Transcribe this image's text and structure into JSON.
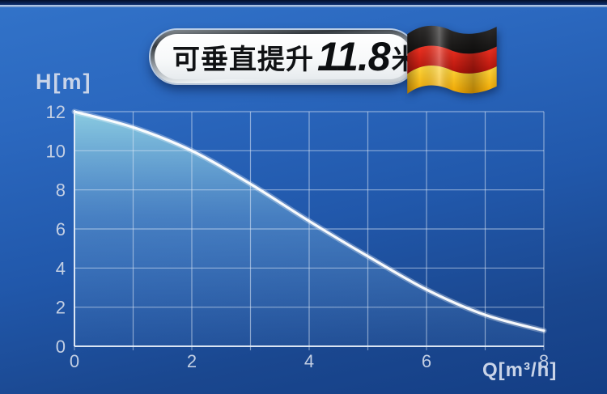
{
  "badge": {
    "prefix": "可垂直提升",
    "value": "11.8",
    "unit": "米",
    "flag": {
      "name": "germany-flag",
      "colors": {
        "black_top": "#2e2c2b",
        "black_bottom": "#121110",
        "red_top": "#f23322",
        "red_bottom": "#ad110a",
        "gold_top": "#ffd93f",
        "gold_bottom": "#efa400"
      }
    }
  },
  "chart_data": {
    "type": "area",
    "title": "",
    "x": [
      0,
      1,
      2,
      3,
      4,
      5,
      6,
      7,
      8
    ],
    "values": [
      12,
      11.2,
      10,
      8.3,
      6.4,
      4.6,
      2.9,
      1.6,
      0.8
    ],
    "xlabel": "Q[m³/h]",
    "ylabel": "H[m]",
    "xlim": [
      0,
      8
    ],
    "ylim": [
      0,
      12
    ],
    "x_tick_labels": [
      "0",
      "2",
      "4",
      "6",
      "8"
    ],
    "y_tick_labels": [
      "0",
      "2",
      "4",
      "6",
      "8",
      "10",
      "12"
    ],
    "x_grid_step": 1,
    "y_grid_step": 2,
    "grid": true,
    "legend": false,
    "colors": {
      "curve": "#ffffff",
      "fill_top": "#8fd0e2",
      "fill_mid": "#6ba3d4",
      "fill_bottom": "#5d8ec8",
      "gridline": "#dce8f5",
      "axis": "#e8f0fa",
      "tick_label": "#c3cfe3"
    }
  }
}
